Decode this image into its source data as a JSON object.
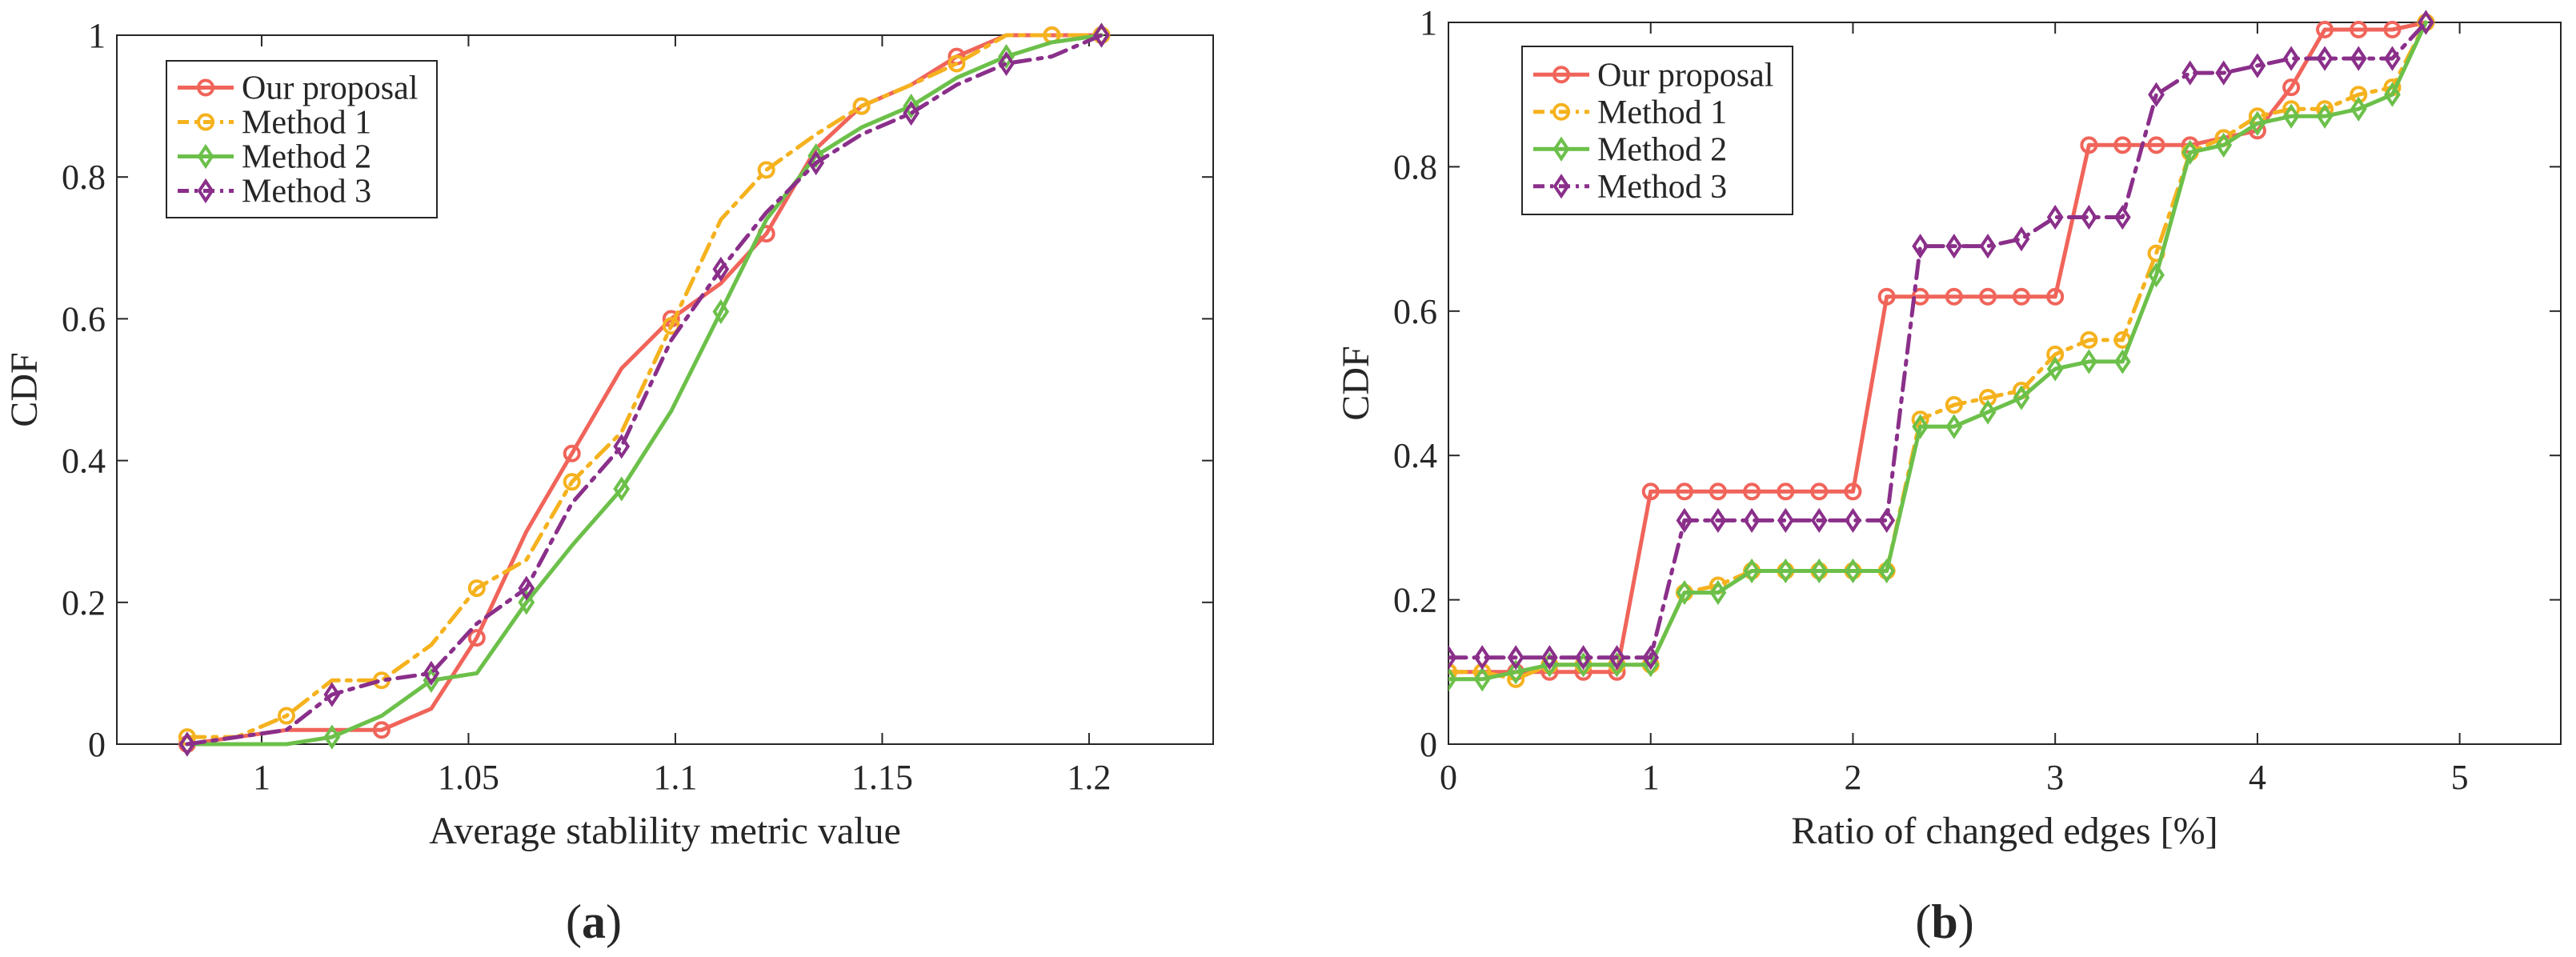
{
  "figure": {
    "colors": {
      "Our proposal": "#F0645A",
      "Method 1": "#F5B21E",
      "Method 2": "#6CC04A",
      "Method 3": "#8A2F8A"
    }
  },
  "chart_data": [
    {
      "id": "a",
      "type": "line",
      "panel_label": "a",
      "title": "",
      "xlabel": "Average stablility metric value",
      "ylabel": "CDF",
      "xlim": [
        0.965,
        1.23
      ],
      "ylim": [
        0,
        1
      ],
      "xticks": [
        1,
        1.05,
        1.1,
        1.15,
        1.2
      ],
      "xtick_labels": [
        "1",
        "1.05",
        "1.1",
        "1.15",
        "1.2"
      ],
      "yticks": [
        0,
        0.2,
        0.4,
        0.6,
        0.8,
        1
      ],
      "ytick_labels": [
        "0",
        "0.2",
        "0.4",
        "0.6",
        "0.8",
        "1"
      ],
      "legend": [
        "Our proposal",
        "Method 1",
        "Method 2",
        "Method 3"
      ],
      "legend_position": "top-left",
      "series": [
        {
          "name": "Our proposal",
          "marker": "circle",
          "dash": "solid",
          "x": [
            0.982,
            1.006,
            1.029,
            1.041,
            1.052,
            1.064,
            1.075,
            1.087,
            1.099,
            1.111,
            1.122,
            1.134,
            1.145,
            1.157,
            1.168,
            1.18,
            1.191,
            1.203
          ],
          "y": [
            0.0,
            0.02,
            0.02,
            0.05,
            0.15,
            0.3,
            0.41,
            0.53,
            0.6,
            0.65,
            0.72,
            0.84,
            0.9,
            0.93,
            0.97,
            1.0,
            1.0,
            1.0
          ],
          "marker_every": 2
        },
        {
          "name": "Method 1",
          "marker": "circle",
          "dash": "dashdot",
          "x": [
            0.982,
            0.994,
            1.006,
            1.017,
            1.029,
            1.041,
            1.052,
            1.064,
            1.075,
            1.087,
            1.099,
            1.111,
            1.122,
            1.134,
            1.145,
            1.157,
            1.168,
            1.18,
            1.191,
            1.203
          ],
          "y": [
            0.01,
            0.01,
            0.04,
            0.09,
            0.09,
            0.14,
            0.22,
            0.26,
            0.37,
            0.44,
            0.59,
            0.74,
            0.81,
            0.86,
            0.9,
            0.93,
            0.96,
            1.0,
            1.0,
            1.0
          ],
          "marker_every": 2
        },
        {
          "name": "Method 2",
          "marker": "diamond",
          "dash": "solid",
          "x": [
            0.982,
            1.006,
            1.017,
            1.029,
            1.041,
            1.052,
            1.064,
            1.075,
            1.087,
            1.099,
            1.111,
            1.122,
            1.134,
            1.145,
            1.157,
            1.168,
            1.18,
            1.191,
            1.203
          ],
          "y": [
            0.0,
            0.0,
            0.01,
            0.04,
            0.09,
            0.1,
            0.2,
            0.28,
            0.36,
            0.47,
            0.61,
            0.74,
            0.83,
            0.87,
            0.9,
            0.94,
            0.97,
            0.99,
            1.0
          ],
          "marker_every": 2
        },
        {
          "name": "Method 3",
          "marker": "diamond",
          "dash": "dashdot",
          "x": [
            0.982,
            1.006,
            1.017,
            1.029,
            1.041,
            1.052,
            1.064,
            1.075,
            1.087,
            1.099,
            1.111,
            1.122,
            1.134,
            1.145,
            1.157,
            1.168,
            1.18,
            1.191,
            1.203
          ],
          "y": [
            0.0,
            0.02,
            0.07,
            0.09,
            0.1,
            0.17,
            0.22,
            0.34,
            0.42,
            0.57,
            0.67,
            0.75,
            0.82,
            0.86,
            0.89,
            0.93,
            0.96,
            0.97,
            1.0
          ],
          "marker_every": 2
        }
      ]
    },
    {
      "id": "b",
      "type": "line",
      "panel_label": "b",
      "title": "",
      "xlabel": "Ratio of changed edges [%]",
      "ylabel": "CDF",
      "xlim": [
        0,
        5.5
      ],
      "ylim": [
        0,
        1
      ],
      "xticks": [
        0,
        1,
        2,
        3,
        4,
        5
      ],
      "xtick_labels": [
        "0",
        "1",
        "2",
        "3",
        "4",
        "5"
      ],
      "yticks": [
        0,
        0.2,
        0.4,
        0.6,
        0.8,
        1
      ],
      "ytick_labels": [
        "0",
        "0.2",
        "0.4",
        "0.6",
        "0.8",
        "1"
      ],
      "legend": [
        "Our proposal",
        "Method 1",
        "Method 2",
        "Method 3"
      ],
      "legend_position": "top-left",
      "series": [
        {
          "name": "Our proposal",
          "marker": "circle",
          "dash": "solid",
          "x": [
            0,
            0.167,
            0.333,
            0.5,
            0.667,
            0.833,
            1.0,
            1.167,
            1.333,
            1.5,
            1.667,
            1.833,
            2.0,
            2.167,
            2.333,
            2.5,
            2.667,
            2.833,
            3.0,
            3.167,
            3.333,
            3.5,
            3.667,
            3.833,
            4.0,
            4.167,
            4.333,
            4.5,
            4.667,
            4.833
          ],
          "y": [
            0.1,
            0.1,
            0.1,
            0.1,
            0.1,
            0.1,
            0.35,
            0.35,
            0.35,
            0.35,
            0.35,
            0.35,
            0.35,
            0.62,
            0.62,
            0.62,
            0.62,
            0.62,
            0.62,
            0.83,
            0.83,
            0.83,
            0.83,
            0.84,
            0.85,
            0.91,
            0.99,
            0.99,
            0.99,
            1.0
          ],
          "marker_every": 1
        },
        {
          "name": "Method 1",
          "marker": "circle",
          "dash": "dashdot",
          "x": [
            0,
            0.167,
            0.333,
            0.5,
            0.667,
            0.833,
            1.0,
            1.167,
            1.333,
            1.5,
            1.667,
            1.833,
            2.0,
            2.167,
            2.333,
            2.5,
            2.667,
            2.833,
            3.0,
            3.167,
            3.333,
            3.5,
            3.667,
            3.833,
            4.0,
            4.167,
            4.333,
            4.5,
            4.667,
            4.833
          ],
          "y": [
            0.1,
            0.1,
            0.09,
            0.11,
            0.11,
            0.11,
            0.11,
            0.21,
            0.22,
            0.24,
            0.24,
            0.24,
            0.24,
            0.24,
            0.45,
            0.47,
            0.48,
            0.49,
            0.54,
            0.56,
            0.56,
            0.68,
            0.82,
            0.84,
            0.87,
            0.88,
            0.88,
            0.9,
            0.91,
            1.0
          ],
          "marker_every": 1
        },
        {
          "name": "Method 2",
          "marker": "diamond",
          "dash": "solid",
          "x": [
            0,
            0.167,
            0.333,
            0.5,
            0.667,
            0.833,
            1.0,
            1.167,
            1.333,
            1.5,
            1.667,
            1.833,
            2.0,
            2.167,
            2.333,
            2.5,
            2.667,
            2.833,
            3.0,
            3.167,
            3.333,
            3.5,
            3.667,
            3.833,
            4.0,
            4.167,
            4.333,
            4.5,
            4.667,
            4.833
          ],
          "y": [
            0.09,
            0.09,
            0.1,
            0.11,
            0.11,
            0.11,
            0.11,
            0.21,
            0.21,
            0.24,
            0.24,
            0.24,
            0.24,
            0.24,
            0.44,
            0.44,
            0.46,
            0.48,
            0.52,
            0.53,
            0.53,
            0.65,
            0.82,
            0.83,
            0.86,
            0.87,
            0.87,
            0.88,
            0.9,
            1.0
          ],
          "marker_every": 1
        },
        {
          "name": "Method 3",
          "marker": "diamond",
          "dash": "dashdot",
          "x": [
            0,
            0.167,
            0.333,
            0.5,
            0.667,
            0.833,
            1.0,
            1.167,
            1.333,
            1.5,
            1.667,
            1.833,
            2.0,
            2.167,
            2.333,
            2.5,
            2.667,
            2.833,
            3.0,
            3.167,
            3.333,
            3.5,
            3.667,
            3.833,
            4.0,
            4.167,
            4.333,
            4.5,
            4.667,
            4.833
          ],
          "y": [
            0.12,
            0.12,
            0.12,
            0.12,
            0.12,
            0.12,
            0.12,
            0.31,
            0.31,
            0.31,
            0.31,
            0.31,
            0.31,
            0.31,
            0.69,
            0.69,
            0.69,
            0.7,
            0.73,
            0.73,
            0.73,
            0.9,
            0.93,
            0.93,
            0.94,
            0.95,
            0.95,
            0.95,
            0.95,
            1.0
          ],
          "marker_every": 1
        }
      ]
    }
  ]
}
